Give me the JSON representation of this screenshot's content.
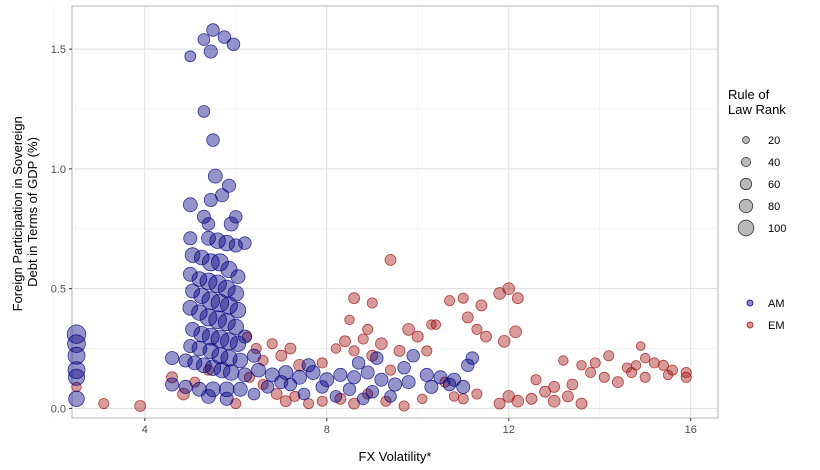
{
  "chart_data": {
    "type": "scatter",
    "xlabel": "FX Volatility*",
    "ylabel_lines": [
      "Foreign Participation in Sovereign",
      "Debt in Terms of GDP (%)"
    ],
    "xlim": [
      2.4,
      16.6
    ],
    "ylim": [
      -0.04,
      1.68
    ],
    "x_ticks": [
      4,
      8,
      12,
      16
    ],
    "y_ticks": [
      0.0,
      0.5,
      1.0,
      1.5
    ],
    "x_tick_labels": [
      "4",
      "8",
      "12",
      "16"
    ],
    "y_tick_labels": [
      "0.0",
      "0.5",
      "1.0",
      "1.5"
    ],
    "grid": true,
    "size_legend": {
      "title_lines": [
        "Rule of",
        "Law Rank"
      ],
      "values": [
        20,
        40,
        60,
        80,
        100
      ],
      "labels": [
        "20",
        "40",
        "60",
        "80",
        "100"
      ],
      "color": "#7f7f7f"
    },
    "color_legend": {
      "placement": "right",
      "entries": [
        {
          "label": "AM",
          "color": "#000080"
        },
        {
          "label": "EM",
          "color": "#a01010"
        }
      ]
    },
    "series": [
      {
        "name": "AM",
        "color": "#000080",
        "points": [
          [
            2.5,
            0.31,
            90
          ],
          [
            2.5,
            0.27,
            85
          ],
          [
            2.5,
            0.22,
            80
          ],
          [
            2.5,
            0.16,
            80
          ],
          [
            2.5,
            0.13,
            75
          ],
          [
            2.5,
            0.04,
            70
          ],
          [
            5.0,
            1.47,
            40
          ],
          [
            5.3,
            1.54,
            45
          ],
          [
            5.5,
            1.58,
            50
          ],
          [
            5.75,
            1.55,
            50
          ],
          [
            5.95,
            1.52,
            50
          ],
          [
            5.45,
            1.49,
            55
          ],
          [
            5.3,
            1.24,
            45
          ],
          [
            5.5,
            1.12,
            50
          ],
          [
            5.55,
            0.97,
            60
          ],
          [
            5.85,
            0.93,
            55
          ],
          [
            5.7,
            0.89,
            55
          ],
          [
            5.45,
            0.87,
            55
          ],
          [
            5.0,
            0.85,
            60
          ],
          [
            5.3,
            0.8,
            55
          ],
          [
            5.4,
            0.77,
            50
          ],
          [
            6.0,
            0.8,
            50
          ],
          [
            5.9,
            0.77,
            60
          ],
          [
            5.0,
            0.71,
            55
          ],
          [
            5.4,
            0.71,
            60
          ],
          [
            5.6,
            0.7,
            70
          ],
          [
            5.8,
            0.69,
            70
          ],
          [
            6.0,
            0.68,
            55
          ],
          [
            6.2,
            0.69,
            50
          ],
          [
            5.05,
            0.64,
            65
          ],
          [
            5.25,
            0.63,
            65
          ],
          [
            5.45,
            0.61,
            80
          ],
          [
            5.65,
            0.61,
            80
          ],
          [
            5.85,
            0.58,
            75
          ],
          [
            6.05,
            0.55,
            60
          ],
          [
            5.0,
            0.56,
            60
          ],
          [
            5.2,
            0.54,
            65
          ],
          [
            5.4,
            0.53,
            80
          ],
          [
            5.6,
            0.52,
            85
          ],
          [
            5.8,
            0.5,
            80
          ],
          [
            6.0,
            0.48,
            70
          ],
          [
            5.05,
            0.49,
            60
          ],
          [
            5.25,
            0.47,
            70
          ],
          [
            5.45,
            0.45,
            85
          ],
          [
            5.65,
            0.44,
            85
          ],
          [
            5.85,
            0.43,
            80
          ],
          [
            6.05,
            0.41,
            70
          ],
          [
            5.0,
            0.42,
            65
          ],
          [
            5.2,
            0.4,
            70
          ],
          [
            5.4,
            0.38,
            80
          ],
          [
            5.6,
            0.37,
            85
          ],
          [
            5.8,
            0.36,
            80
          ],
          [
            6.0,
            0.34,
            70
          ],
          [
            5.05,
            0.33,
            60
          ],
          [
            5.25,
            0.31,
            70
          ],
          [
            5.45,
            0.3,
            80
          ],
          [
            5.65,
            0.29,
            85
          ],
          [
            5.85,
            0.28,
            80
          ],
          [
            6.05,
            0.27,
            70
          ],
          [
            5.0,
            0.26,
            55
          ],
          [
            5.2,
            0.25,
            65
          ],
          [
            5.45,
            0.24,
            70
          ],
          [
            5.65,
            0.22,
            75
          ],
          [
            5.85,
            0.21,
            75
          ],
          [
            6.1,
            0.2,
            65
          ],
          [
            4.6,
            0.21,
            55
          ],
          [
            4.9,
            0.2,
            55
          ],
          [
            5.1,
            0.19,
            60
          ],
          [
            5.3,
            0.18,
            65
          ],
          [
            5.5,
            0.17,
            70
          ],
          [
            5.7,
            0.16,
            70
          ],
          [
            5.9,
            0.15,
            70
          ],
          [
            6.2,
            0.14,
            60
          ],
          [
            4.6,
            0.1,
            55
          ],
          [
            4.9,
            0.09,
            55
          ],
          [
            5.2,
            0.08,
            60
          ],
          [
            5.5,
            0.08,
            65
          ],
          [
            5.8,
            0.08,
            65
          ],
          [
            6.1,
            0.08,
            60
          ],
          [
            5.4,
            0.05,
            60
          ],
          [
            5.8,
            0.04,
            55
          ],
          [
            6.5,
            0.16,
            60
          ],
          [
            6.8,
            0.14,
            60
          ],
          [
            7.1,
            0.15,
            60
          ],
          [
            7.4,
            0.13,
            60
          ],
          [
            7.7,
            0.15,
            60
          ],
          [
            8.0,
            0.12,
            60
          ],
          [
            8.3,
            0.14,
            55
          ],
          [
            8.6,
            0.13,
            55
          ],
          [
            8.9,
            0.15,
            55
          ],
          [
            9.2,
            0.12,
            55
          ],
          [
            9.5,
            0.1,
            55
          ],
          [
            9.8,
            0.11,
            55
          ],
          [
            10.2,
            0.14,
            55
          ],
          [
            10.5,
            0.13,
            55
          ],
          [
            10.8,
            0.12,
            55
          ],
          [
            11.1,
            0.18,
            50
          ],
          [
            11.2,
            0.21,
            50
          ],
          [
            9.9,
            0.22,
            50
          ],
          [
            9.7,
            0.17,
            50
          ],
          [
            10.3,
            0.09,
            55
          ],
          [
            10.7,
            0.1,
            50
          ],
          [
            11.0,
            0.09,
            55
          ],
          [
            7.2,
            0.1,
            50
          ],
          [
            7.9,
            0.09,
            50
          ],
          [
            8.5,
            0.08,
            50
          ],
          [
            9.0,
            0.07,
            50
          ],
          [
            6.4,
            0.06,
            45
          ],
          [
            7.5,
            0.06,
            45
          ],
          [
            8.2,
            0.05,
            45
          ],
          [
            8.8,
            0.04,
            45
          ],
          [
            9.4,
            0.05,
            45
          ],
          [
            6.7,
            0.09,
            50
          ],
          [
            7.0,
            0.11,
            55
          ],
          [
            9.1,
            0.21,
            50
          ],
          [
            8.7,
            0.19,
            50
          ],
          [
            7.6,
            0.18,
            55
          ],
          [
            6.2,
            0.3,
            55
          ],
          [
            6.4,
            0.22,
            55
          ]
        ]
      },
      {
        "name": "EM",
        "color": "#a01010",
        "points": [
          [
            2.5,
            0.09,
            30
          ],
          [
            3.1,
            0.02,
            35
          ],
          [
            3.9,
            0.01,
            40
          ],
          [
            4.6,
            0.13,
            40
          ],
          [
            4.85,
            0.06,
            45
          ],
          [
            6.25,
            0.3,
            30
          ],
          [
            6.45,
            0.25,
            35
          ],
          [
            6.6,
            0.2,
            35
          ],
          [
            6.8,
            0.27,
            35
          ],
          [
            7.0,
            0.22,
            40
          ],
          [
            7.2,
            0.25,
            40
          ],
          [
            7.4,
            0.18,
            45
          ],
          [
            6.3,
            0.13,
            35
          ],
          [
            6.6,
            0.1,
            35
          ],
          [
            6.9,
            0.06,
            40
          ],
          [
            7.1,
            0.03,
            40
          ],
          [
            7.3,
            0.05,
            35
          ],
          [
            7.6,
            0.02,
            35
          ],
          [
            7.9,
            0.19,
            35
          ],
          [
            8.2,
            0.25,
            30
          ],
          [
            8.4,
            0.28,
            40
          ],
          [
            8.6,
            0.24,
            35
          ],
          [
            8.8,
            0.29,
            35
          ],
          [
            9.0,
            0.22,
            40
          ],
          [
            9.2,
            0.27,
            45
          ],
          [
            9.4,
            0.16,
            35
          ],
          [
            9.6,
            0.24,
            40
          ],
          [
            9.8,
            0.33,
            45
          ],
          [
            10.0,
            0.3,
            40
          ],
          [
            10.2,
            0.24,
            35
          ],
          [
            10.3,
            0.35,
            30
          ],
          [
            8.6,
            0.46,
            40
          ],
          [
            9.0,
            0.44,
            35
          ],
          [
            9.4,
            0.62,
            40
          ],
          [
            8.5,
            0.37,
            30
          ],
          [
            8.9,
            0.33,
            35
          ],
          [
            7.9,
            0.03,
            35
          ],
          [
            8.3,
            0.04,
            40
          ],
          [
            8.6,
            0.02,
            40
          ],
          [
            8.9,
            0.06,
            35
          ],
          [
            9.3,
            0.03,
            35
          ],
          [
            9.7,
            0.01,
            35
          ],
          [
            10.1,
            0.04,
            30
          ],
          [
            10.4,
            0.35,
            30
          ],
          [
            10.7,
            0.45,
            35
          ],
          [
            11.1,
            0.38,
            40
          ],
          [
            11.3,
            0.33,
            35
          ],
          [
            11.5,
            0.3,
            40
          ],
          [
            11.9,
            0.28,
            45
          ],
          [
            12.15,
            0.32,
            45
          ],
          [
            11.4,
            0.43,
            40
          ],
          [
            11.8,
            0.48,
            45
          ],
          [
            12.0,
            0.5,
            45
          ],
          [
            12.2,
            0.46,
            40
          ],
          [
            11.0,
            0.46,
            35
          ],
          [
            11.8,
            0.02,
            40
          ],
          [
            12.0,
            0.05,
            45
          ],
          [
            12.2,
            0.03,
            45
          ],
          [
            12.5,
            0.04,
            40
          ],
          [
            12.8,
            0.07,
            40
          ],
          [
            13.0,
            0.03,
            45
          ],
          [
            13.3,
            0.05,
            40
          ],
          [
            13.6,
            0.02,
            40
          ],
          [
            12.6,
            0.12,
            35
          ],
          [
            13.0,
            0.09,
            40
          ],
          [
            13.4,
            0.1,
            40
          ],
          [
            13.8,
            0.15,
            35
          ],
          [
            14.1,
            0.13,
            35
          ],
          [
            14.4,
            0.11,
            40
          ],
          [
            14.7,
            0.15,
            35
          ],
          [
            15.0,
            0.13,
            35
          ],
          [
            13.2,
            0.2,
            30
          ],
          [
            13.6,
            0.18,
            30
          ],
          [
            13.9,
            0.19,
            35
          ],
          [
            14.2,
            0.22,
            35
          ],
          [
            14.6,
            0.17,
            30
          ],
          [
            15.0,
            0.21,
            30
          ],
          [
            15.2,
            0.19,
            35
          ],
          [
            15.4,
            0.18,
            35
          ],
          [
            15.6,
            0.16,
            35
          ],
          [
            15.9,
            0.15,
            35
          ],
          [
            15.9,
            0.13,
            35
          ],
          [
            15.5,
            0.14,
            30
          ],
          [
            14.9,
            0.26,
            25
          ],
          [
            14.8,
            0.18,
            30
          ],
          [
            10.8,
            0.05,
            30
          ],
          [
            11.0,
            0.04,
            35
          ],
          [
            11.3,
            0.06,
            35
          ],
          [
            5.1,
            0.11,
            35
          ],
          [
            5.4,
            0.16,
            35
          ],
          [
            6.0,
            0.02,
            35
          ],
          [
            10.6,
            0.11,
            35
          ]
        ]
      }
    ]
  }
}
